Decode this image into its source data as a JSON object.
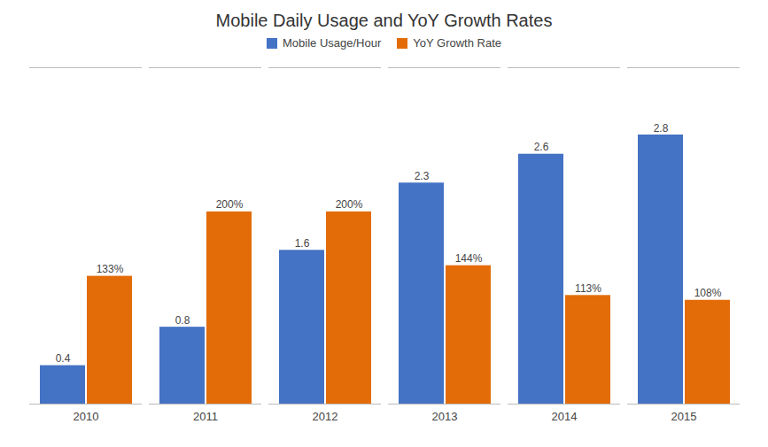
{
  "chart_data": {
    "type": "bar",
    "title": "Mobile Daily Usage and YoY Growth Rates",
    "categories": [
      "2010",
      "2011",
      "2012",
      "2013",
      "2014",
      "2015"
    ],
    "series": [
      {
        "name": "Mobile Usage/Hour",
        "color": "#4472C4",
        "values": [
          0.4,
          0.8,
          1.6,
          2.3,
          2.6,
          2.8
        ],
        "value_labels": [
          "0.4",
          "0.8",
          "1.6",
          "2.3",
          "2.6",
          "2.8"
        ]
      },
      {
        "name": "YoY Growth Rate",
        "color": "#E36C09",
        "values": [
          1.33,
          2.0,
          2.0,
          1.44,
          1.13,
          1.08
        ],
        "value_labels": [
          "133%",
          "200%",
          "200%",
          "144%",
          "113%",
          "108%"
        ]
      }
    ],
    "ylim": [
      0,
      3.5
    ],
    "yticks": [],
    "tick_labels": "x",
    "data_labels": true,
    "legend": "top",
    "grid": false
  }
}
